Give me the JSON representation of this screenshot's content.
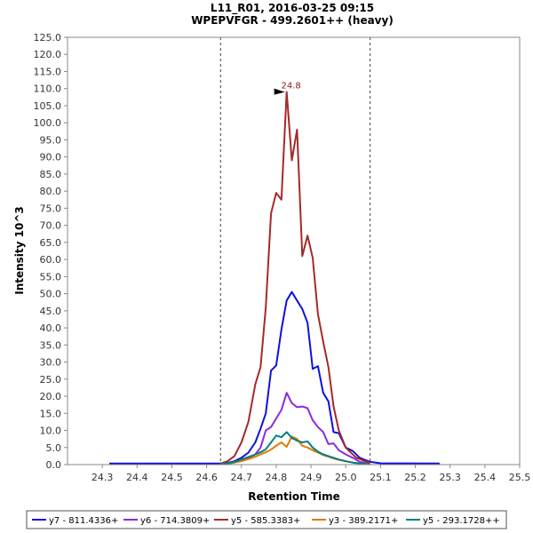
{
  "chart_data": {
    "type": "line",
    "title": "L11_R01, 2016-03-25 09:15",
    "subtitle": "WPEPVFGR - 499.2601++ (heavy)",
    "xlabel": "Retention Time",
    "ylabel": "Intensity 10^3",
    "xlim": [
      24.2,
      25.5
    ],
    "ylim": [
      0,
      125
    ],
    "x_ticks": [
      "24.3",
      "24.4",
      "24.5",
      "24.6",
      "24.7",
      "24.8",
      "24.9",
      "25.0",
      "25.1",
      "25.2",
      "25.3",
      "25.4",
      "25.5"
    ],
    "y_ticks": [
      "0.0",
      "5.0",
      "10.0",
      "15.0",
      "20.0",
      "25.0",
      "30.0",
      "35.0",
      "40.0",
      "45.0",
      "50.0",
      "55.0",
      "60.0",
      "65.0",
      "70.0",
      "75.0",
      "80.0",
      "85.0",
      "90.0",
      "95.0",
      "100.0",
      "105.0",
      "110.0",
      "115.0",
      "120.0",
      "125.0"
    ],
    "integration_bounds": [
      24.64,
      25.07
    ],
    "peak_annotation": {
      "x": 24.83,
      "y": 109,
      "label": "24.8",
      "color": "#8b1a1a"
    },
    "grid": false,
    "legend_position": "bottom",
    "series": [
      {
        "name": "y7 - 811.4336+",
        "color": "#1010e0",
        "x": [
          24.32,
          24.64,
          24.66,
          24.68,
          24.7,
          24.72,
          24.74,
          24.755,
          24.77,
          24.785,
          24.8,
          24.815,
          24.83,
          24.845,
          24.86,
          24.875,
          24.89,
          24.905,
          24.92,
          24.935,
          24.95,
          24.965,
          24.98,
          25.0,
          25.02,
          25.04,
          25.07,
          25.1,
          25.27
        ],
        "y": [
          0.3,
          0.3,
          0.5,
          1.0,
          2.0,
          3.5,
          6.5,
          10.5,
          15.0,
          27.5,
          29.0,
          39.5,
          48.0,
          50.5,
          48.0,
          45.5,
          41.5,
          28.0,
          28.8,
          21.0,
          18.5,
          9.5,
          9.2,
          5.0,
          4.0,
          2.0,
          0.8,
          0.4,
          0.3
        ]
      },
      {
        "name": "y6 - 714.3809+",
        "color": "#8a2be2",
        "x": [
          24.64,
          24.66,
          24.68,
          24.7,
          24.72,
          24.74,
          24.755,
          24.77,
          24.785,
          24.8,
          24.815,
          24.83,
          24.845,
          24.86,
          24.875,
          24.89,
          24.905,
          24.92,
          24.935,
          24.95,
          24.965,
          24.98,
          25.0,
          25.02,
          25.04,
          25.07
        ],
        "y": [
          0.2,
          0.3,
          0.6,
          1.2,
          2.0,
          3.0,
          5.0,
          10.0,
          11.0,
          13.5,
          16.0,
          21.0,
          18.0,
          16.8,
          17.0,
          16.5,
          13.0,
          11.0,
          9.5,
          6.0,
          6.2,
          4.2,
          3.0,
          2.0,
          0.8,
          0.3
        ]
      },
      {
        "name": "y5 - 585.3383+",
        "color": "#a52a2a",
        "x": [
          24.64,
          24.66,
          24.68,
          24.7,
          24.72,
          24.74,
          24.755,
          24.77,
          24.785,
          24.8,
          24.815,
          24.83,
          24.845,
          24.86,
          24.875,
          24.89,
          24.905,
          24.92,
          24.935,
          24.95,
          24.965,
          24.98,
          25.0,
          25.03,
          25.07
        ],
        "y": [
          0.3,
          1.0,
          2.5,
          6.5,
          12.5,
          23.5,
          28.5,
          46.0,
          73.5,
          79.5,
          77.5,
          109.0,
          89.0,
          98.0,
          61.0,
          67.0,
          60.5,
          44.0,
          36.0,
          28.5,
          17.0,
          10.0,
          5.0,
          2.0,
          0.5
        ]
      },
      {
        "name": "y3 - 389.2171+",
        "color": "#e07b00",
        "x": [
          24.64,
          24.66,
          24.68,
          24.7,
          24.72,
          24.74,
          24.755,
          24.77,
          24.785,
          24.8,
          24.815,
          24.83,
          24.845,
          24.86,
          24.875,
          24.89,
          24.905,
          24.92,
          24.935,
          24.95,
          24.965,
          24.98,
          25.0,
          25.02,
          25.04,
          25.07
        ],
        "y": [
          0.1,
          0.3,
          0.6,
          1.0,
          1.6,
          2.3,
          3.0,
          3.6,
          4.4,
          5.5,
          6.5,
          5.2,
          8.2,
          7.5,
          5.5,
          5.0,
          4.2,
          3.5,
          2.8,
          2.3,
          1.8,
          1.4,
          1.0,
          0.6,
          0.3,
          0.1
        ]
      },
      {
        "name": "y5 - 293.1728++",
        "color": "#008080",
        "x": [
          24.64,
          24.66,
          24.68,
          24.7,
          24.72,
          24.74,
          24.755,
          24.77,
          24.785,
          24.8,
          24.815,
          24.83,
          24.845,
          24.86,
          24.875,
          24.89,
          24.905,
          24.92,
          24.935,
          24.95,
          24.965,
          24.98,
          25.0,
          25.02,
          25.04,
          25.07
        ],
        "y": [
          0.2,
          0.4,
          0.8,
          1.5,
          2.2,
          3.0,
          3.6,
          4.5,
          6.5,
          8.5,
          8.0,
          9.5,
          7.8,
          7.0,
          6.5,
          6.8,
          5.0,
          3.8,
          3.0,
          2.5,
          2.0,
          1.5,
          1.0,
          0.6,
          0.3,
          0.1
        ]
      }
    ]
  }
}
